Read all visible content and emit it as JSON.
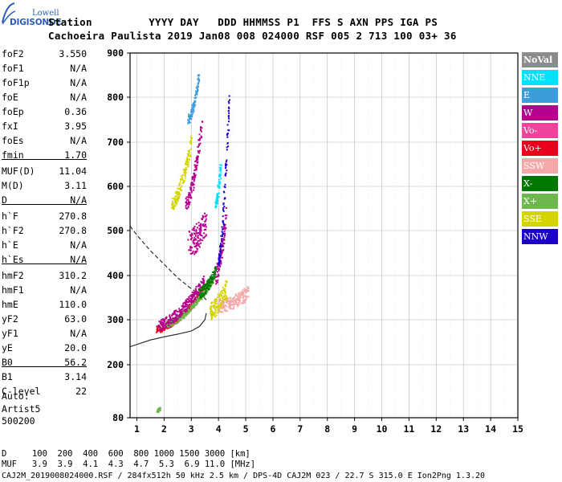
{
  "logo": {
    "top": "Lowell",
    "bottom": "DIGISONDE"
  },
  "header": {
    "line1": "Station         YYYY DAY   DDD HHMMSS P1  FFS S AXN PPS IGA PS",
    "line2": "Cachoeira Paulista 2019 Jan08 008 024000 RSF 005 2 713 100 03+ 36"
  },
  "params": [
    {
      "name": "foF2",
      "value": "3.550"
    },
    {
      "name": "foF1",
      "value": "N/A"
    },
    {
      "name": "foF1p",
      "value": "N/A"
    },
    {
      "name": "foE",
      "value": "N/A"
    },
    {
      "name": "foEp",
      "value": "0.36"
    },
    {
      "name": "fxI",
      "value": "3.95"
    },
    {
      "name": "foEs",
      "value": "N/A"
    },
    {
      "name": "fmin",
      "value": "1.70"
    },
    {
      "name": "MUF(D)",
      "value": "11.04"
    },
    {
      "name": "M(D)",
      "value": "3.11"
    },
    {
      "name": "D",
      "value": "N/A"
    },
    {
      "name": "h`F",
      "value": "270.8"
    },
    {
      "name": "h`F2",
      "value": "270.8"
    },
    {
      "name": "h`E",
      "value": "N/A"
    },
    {
      "name": "h`Es",
      "value": "N/A"
    },
    {
      "name": "hmF2",
      "value": "310.2"
    },
    {
      "name": "hmF1",
      "value": "N/A"
    },
    {
      "name": "hmE",
      "value": "110.0"
    },
    {
      "name": "yF2",
      "value": "63.0"
    },
    {
      "name": "yF1",
      "value": "N/A"
    },
    {
      "name": "yE",
      "value": "20.0"
    },
    {
      "name": "B0",
      "value": "56.2"
    },
    {
      "name": "B1",
      "value": "3.14"
    },
    {
      "name": "C-level",
      "value": "22"
    }
  ],
  "auto": {
    "line1": "Auto:",
    "line2": "Artist5",
    "line3": "500200"
  },
  "legend": [
    {
      "label": "NoVal",
      "color": "#8c8c8c"
    },
    {
      "label": "NNE",
      "color": "#00e0ff"
    },
    {
      "label": "E",
      "color": "#3c9ddc"
    },
    {
      "label": "W",
      "color": "#b4008c"
    },
    {
      "label": "Vo-",
      "color": "#f0449c"
    },
    {
      "label": "Vo+",
      "color": "#e8001c"
    },
    {
      "label": "SSW",
      "color": "#f4a8a8"
    },
    {
      "label": "X-",
      "color": "#007800"
    },
    {
      "label": "X+",
      "color": "#6cb84c"
    },
    {
      "label": "SSE",
      "color": "#d4d400"
    },
    {
      "label": "NNW",
      "color": "#1c00c8"
    }
  ],
  "mufTable": {
    "line1": "D     100  200  400  600  800 1000 1500 3000 [km]",
    "line2": "MUF   3.9  3.9  4.1  4.3  4.7  5.3  6.9 11.0 [MHz]"
  },
  "footer": "CAJ2M_2019008024000.RSF / 284fx512h 50 kHz 2.5 km / DPS-4D CAJ2M 023 / 22.7 S 315.0 E Ion2Png 1.3.20",
  "chart_data": {
    "type": "scatter",
    "xlim": [
      0.75,
      15
    ],
    "ylim": [
      80,
      900
    ],
    "xticks": [
      1,
      2,
      3,
      4,
      5,
      6,
      7,
      8,
      9,
      10,
      11,
      12,
      13,
      14,
      15
    ],
    "yticks": [
      80,
      200,
      300,
      400,
      500,
      600,
      700,
      800,
      900
    ],
    "xlabel": "",
    "ylabel": "",
    "grid": true,
    "curves": {
      "profile_dashed": [
        [
          0.75,
          510
        ],
        [
          1.0,
          490
        ],
        [
          1.5,
          455
        ],
        [
          2.0,
          425
        ],
        [
          2.5,
          395
        ],
        [
          3.0,
          370
        ],
        [
          3.4,
          355
        ],
        [
          3.55,
          345
        ]
      ],
      "profile_solid": [
        [
          0.75,
          240
        ],
        [
          1.5,
          255
        ],
        [
          2.0,
          262
        ],
        [
          2.5,
          268
        ],
        [
          3.0,
          275
        ],
        [
          3.3,
          285
        ],
        [
          3.5,
          300
        ],
        [
          3.55,
          315
        ]
      ]
    },
    "traces": [
      {
        "name": "Vo+",
        "f0": 1.75,
        "f1": 3.5,
        "h0": 278,
        "h1": 368,
        "spread": 7
      },
      {
        "name": "X+",
        "f0": 2.05,
        "f1": 3.8,
        "h0": 290,
        "h1": 390,
        "spread": 8
      },
      {
        "name": "W",
        "f0": 1.8,
        "f1": 3.5,
        "h0": 288,
        "h1": 390,
        "spread": 12
      },
      {
        "name": "W",
        "f0": 2.9,
        "f1": 3.55,
        "h0": 470,
        "h1": 520,
        "spread": 30
      },
      {
        "name": "W",
        "f0": 3.9,
        "f1": 4.3,
        "h0": 400,
        "h1": 540,
        "spread": 20
      },
      {
        "name": "NNW",
        "f0": 4.0,
        "f1": 4.4,
        "h0": 430,
        "h1": 800,
        "spread": 15
      },
      {
        "name": "W",
        "f0": 2.8,
        "f1": 3.4,
        "h0": 560,
        "h1": 740,
        "spread": 15
      },
      {
        "name": "SSE",
        "f0": 2.3,
        "f1": 3.0,
        "h0": 560,
        "h1": 700,
        "spread": 15
      },
      {
        "name": "E",
        "f0": 2.9,
        "f1": 3.3,
        "h0": 750,
        "h1": 850,
        "spread": 10
      },
      {
        "name": "SSW",
        "f0": 4.0,
        "f1": 5.1,
        "h0": 330,
        "h1": 360,
        "spread": 15
      },
      {
        "name": "SSE",
        "f0": 3.7,
        "f1": 4.3,
        "h0": 320,
        "h1": 370,
        "spread": 20
      },
      {
        "name": "X-",
        "f0": 3.3,
        "f1": 3.9,
        "h0": 360,
        "h1": 410,
        "spread": 12
      },
      {
        "name": "NNE",
        "f0": 3.9,
        "f1": 4.1,
        "h0": 560,
        "h1": 650,
        "spread": 10
      },
      {
        "name": "X+",
        "f0": 1.75,
        "f1": 1.85,
        "h0": 95,
        "h1": 100,
        "spread": 3
      }
    ]
  }
}
